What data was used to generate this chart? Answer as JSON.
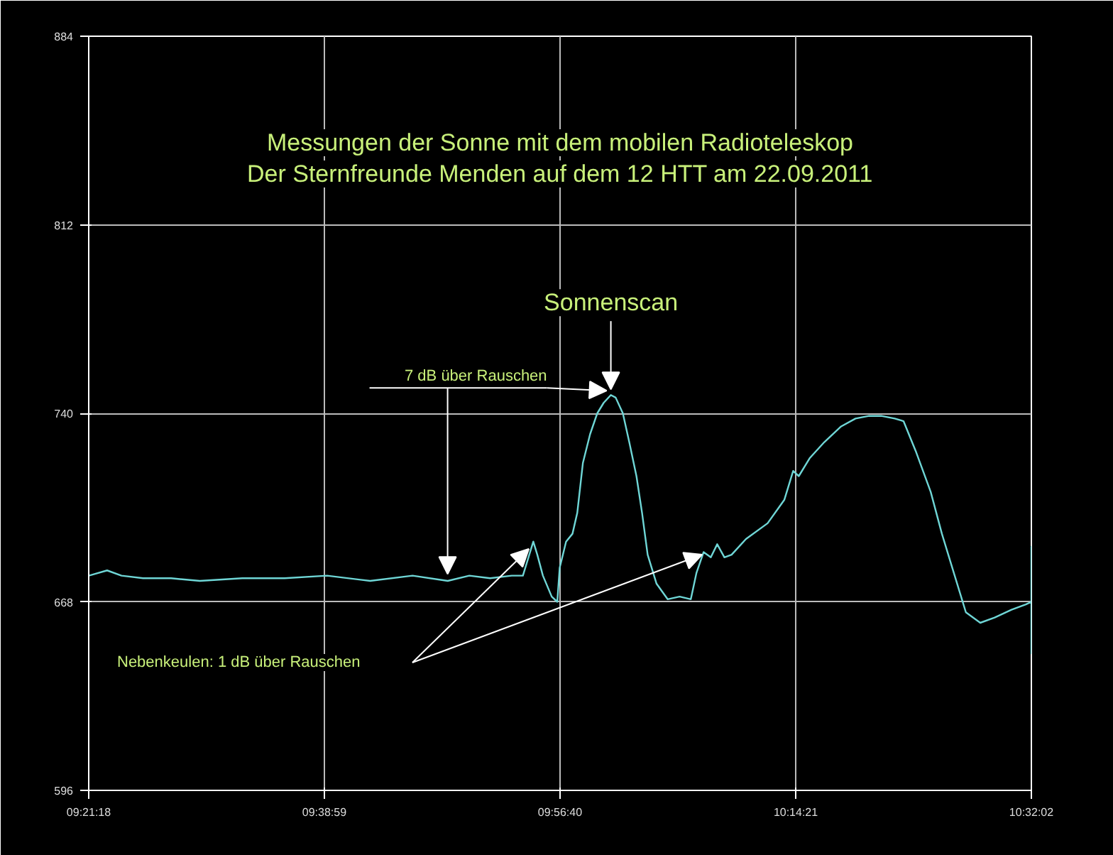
{
  "chart_data": {
    "type": "line",
    "title": "Messungen der Sonne mit dem mobilen Radioteleskop\nDer Sternfreunde Menden auf dem 12 HTT am 22.09.2011",
    "annotations": [
      {
        "text": "Sonnenscan",
        "x": 10.008,
        "y": 747
      },
      {
        "text": "7 dB über Rauschen",
        "x": 10.008,
        "y": 747
      },
      "Nebenkeulen: 1 dB über Rauschen"
    ],
    "series": [
      {
        "color": "#6fd6d6",
        "x": [
          9.355,
          9.378,
          9.396,
          9.423,
          9.458,
          9.494,
          9.547,
          9.6,
          9.653,
          9.707,
          9.76,
          9.804,
          9.831,
          9.857,
          9.884,
          9.898,
          9.911,
          9.916,
          9.923,
          9.934,
          9.941,
          9.944,
          9.952,
          9.96,
          9.966,
          9.973,
          9.982,
          9.991,
          9.999,
          10.008,
          10.014,
          10.023,
          10.031,
          10.04,
          10.047,
          10.054,
          10.065,
          10.079,
          10.094,
          10.108,
          10.115,
          10.124,
          10.133,
          10.141,
          10.15,
          10.159,
          10.177,
          10.204,
          10.225,
          10.236,
          10.243,
          10.257,
          10.275,
          10.296,
          10.314,
          10.331,
          10.346,
          10.363,
          10.374,
          10.39,
          10.408,
          10.422,
          10.438,
          10.452,
          10.47,
          10.488,
          10.509,
          10.527,
          10.5339,
          10.5339,
          10.5339
        ],
        "values": [
          678,
          680,
          678,
          677,
          677,
          676,
          677,
          677,
          678,
          676,
          678,
          676,
          678,
          677,
          678,
          678,
          691,
          686,
          678,
          670,
          668,
          681,
          691,
          694,
          702,
          721,
          732,
          740,
          744,
          747,
          746,
          740,
          729,
          716,
          702,
          686,
          675,
          669,
          670,
          669,
          679,
          687,
          685,
          690,
          685,
          686,
          692,
          698,
          707,
          718,
          716,
          723,
          729,
          735,
          738,
          739,
          739,
          738,
          737,
          725,
          710,
          694,
          678,
          664,
          660,
          662,
          665,
          667,
          668,
          689,
          648
        ]
      }
    ],
    "xlim": [
      9.355,
      10.5339
    ],
    "xticks": [
      {
        "value": 9.355,
        "label": "09:21:18"
      },
      {
        "value": 9.6497,
        "label": "09:38:59"
      },
      {
        "value": 9.9444,
        "label": "09:56:40"
      },
      {
        "value": 10.2392,
        "label": "10:14:21"
      },
      {
        "value": 10.5339,
        "label": "10:32:02"
      }
    ],
    "ylim": [
      596,
      884
    ],
    "yticks": [
      596,
      668,
      740,
      812,
      884
    ],
    "grid": true,
    "marker": "none",
    "line_style": "solid"
  }
}
